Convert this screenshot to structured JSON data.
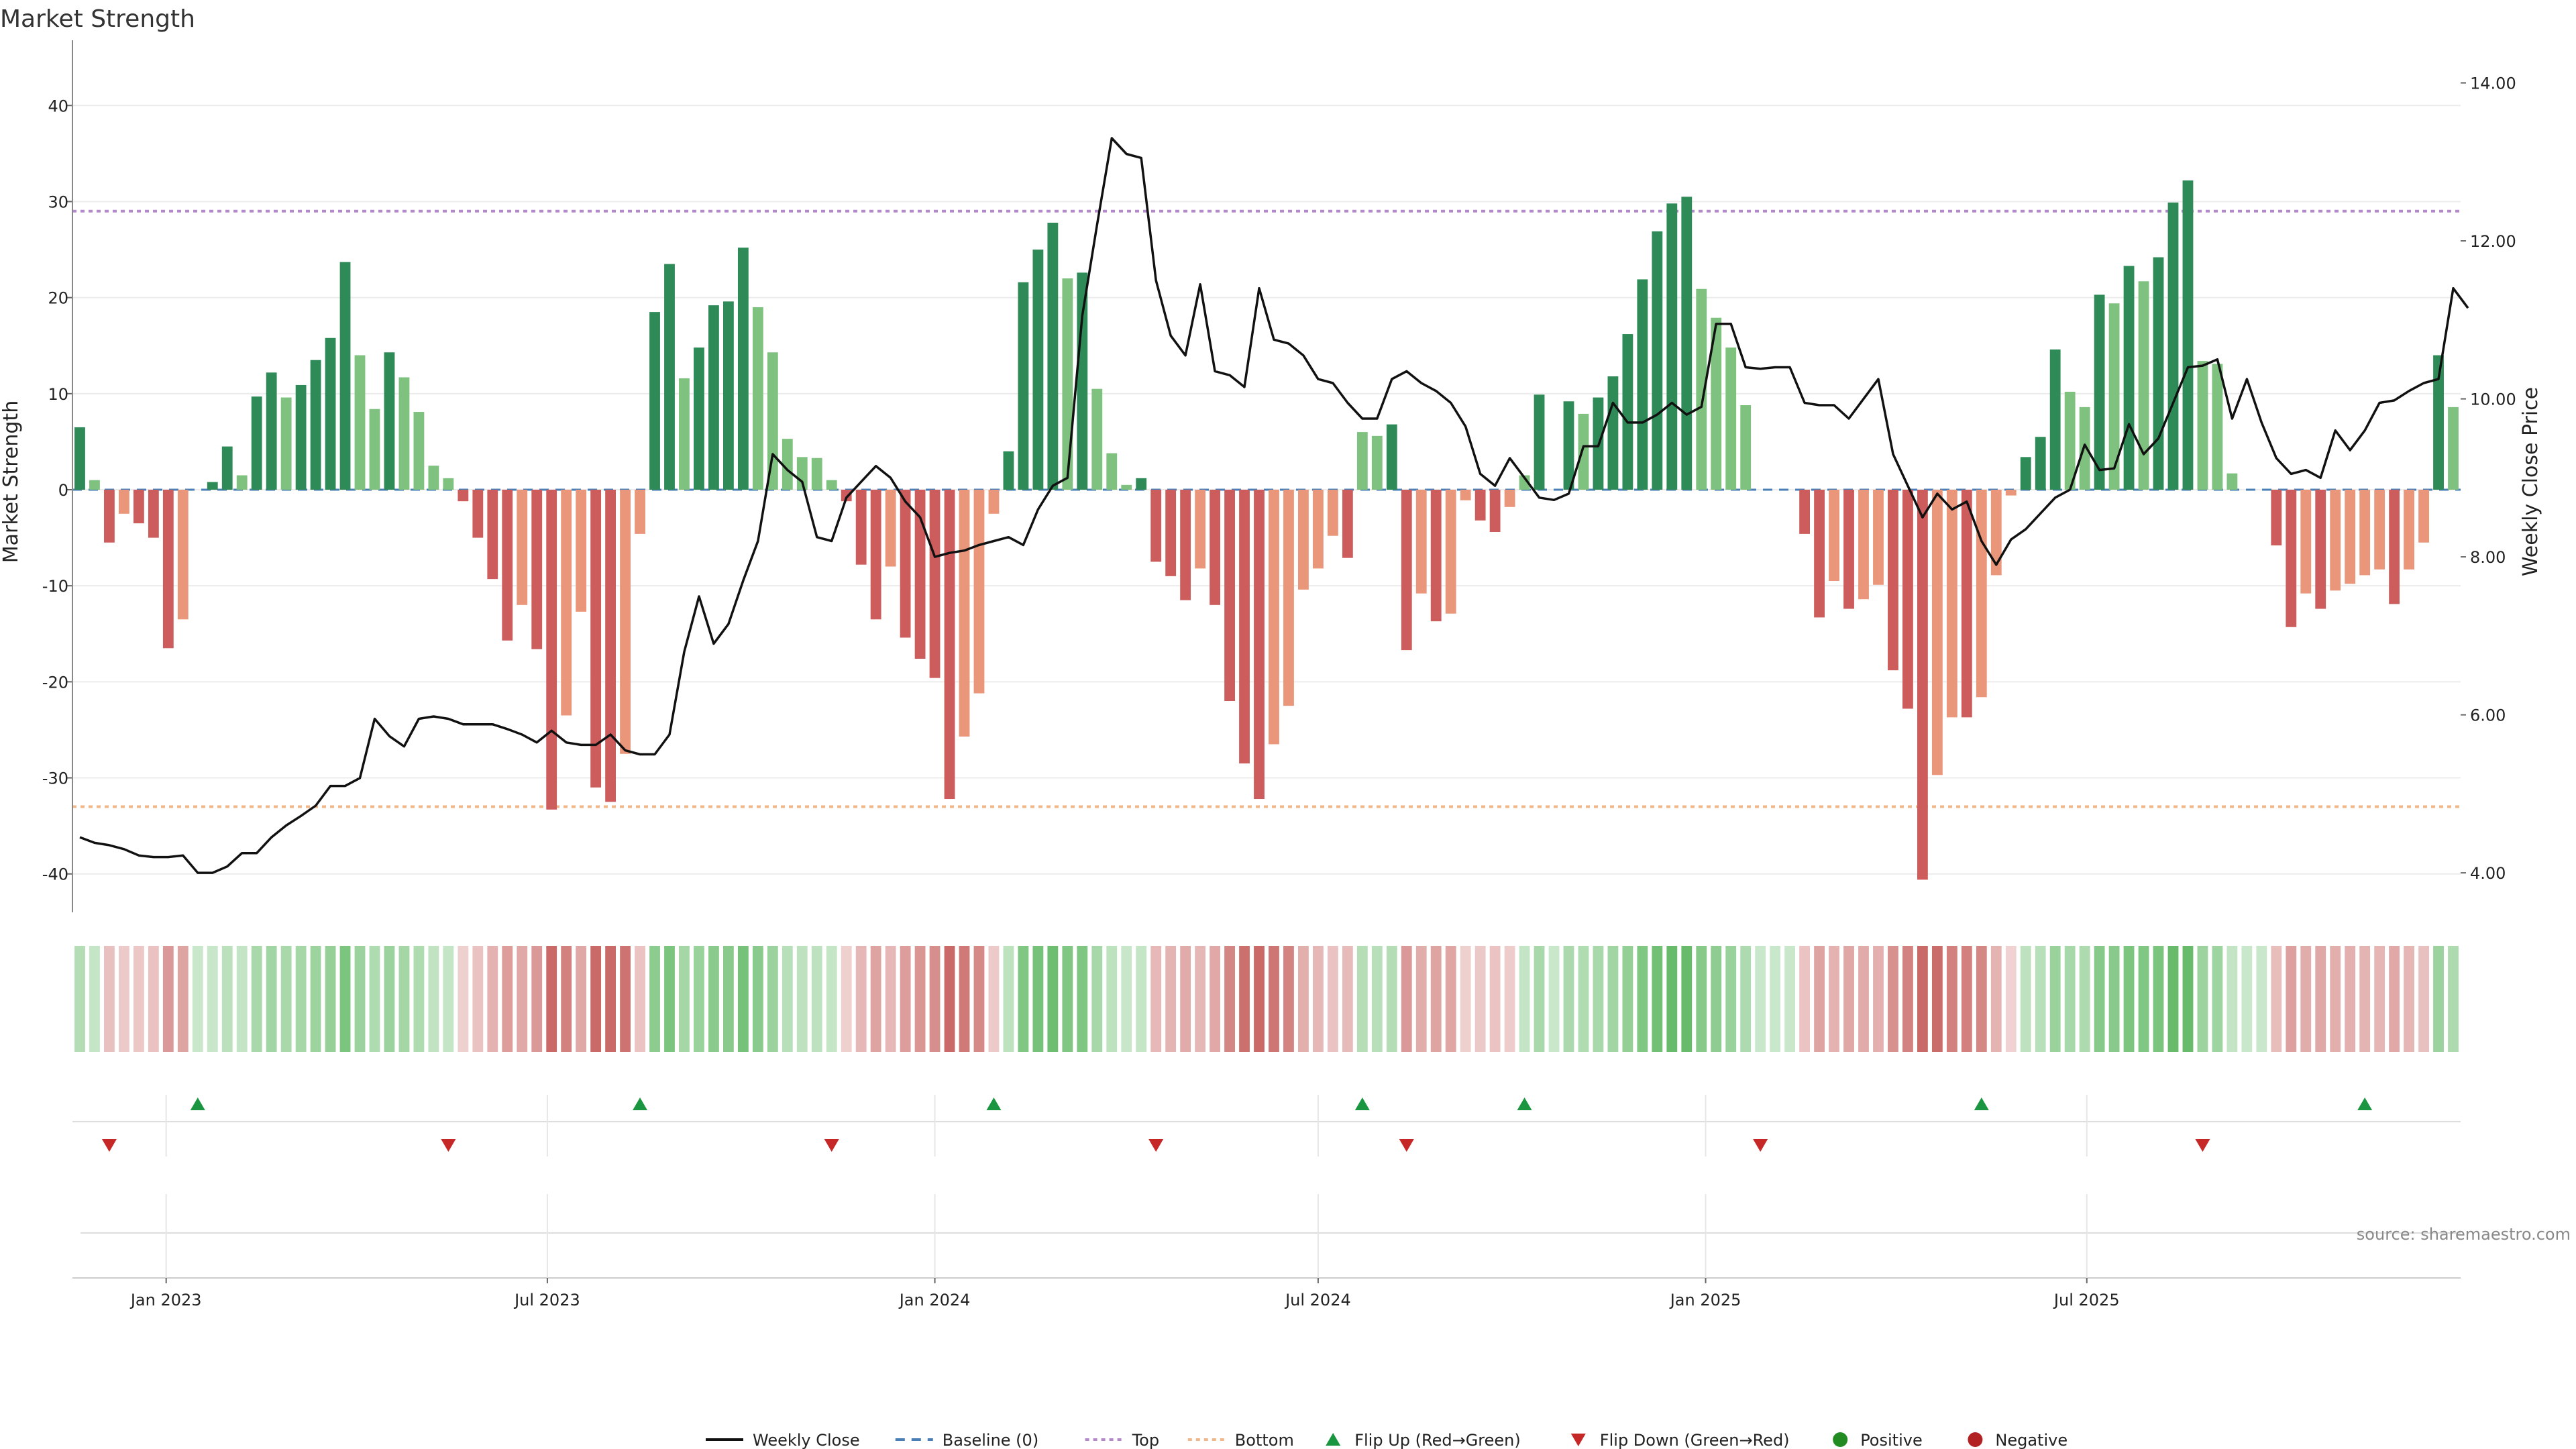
{
  "chart_data": {
    "type": "bar",
    "title": "Market Strength",
    "ylabel": "Market Strength",
    "y2label": "Weekly Close Price",
    "ylim": [
      -44,
      44
    ],
    "y2lim": [
      3.5,
      14.2
    ],
    "yticks": [
      40,
      30,
      20,
      10,
      0,
      -10,
      -20,
      -30,
      -40
    ],
    "y2ticks": [
      "14.00",
      "12.00",
      "10.00",
      "8.00",
      "6.00",
      "4.00"
    ],
    "x_start": "2022-11-21",
    "xticks": [
      {
        "date": "2023-01-01",
        "label": "Jan 2023"
      },
      {
        "date": "2023-07-01",
        "label": "Jul 2023"
      },
      {
        "date": "2024-01-01",
        "label": "Jan 2024"
      },
      {
        "date": "2024-07-01",
        "label": "Jul 2024"
      },
      {
        "date": "2025-01-01",
        "label": "Jan 2025"
      },
      {
        "date": "2025-07-01",
        "label": "Jul 2025"
      }
    ],
    "strength": [
      6.5,
      1,
      -5.5,
      -2.5,
      -3.5,
      -5,
      -16.5,
      -13.5,
      0,
      0.8,
      4.5,
      1.5,
      9.7,
      12.2,
      9.6,
      10.9,
      13.5,
      15.8,
      23.7,
      14,
      8.4,
      14.3,
      11.7,
      8.1,
      2.5,
      1.2,
      -1.2,
      -5,
      -9.3,
      -15.7,
      -12,
      -16.6,
      -33.3,
      -23.5,
      -12.7,
      -31,
      -32.5,
      -27.5,
      -4.6,
      18.5,
      23.5,
      11.6,
      14.8,
      19.2,
      19.6,
      25.2,
      19,
      14.3,
      5.3,
      3.4,
      3.3,
      1,
      -1.2,
      -7.8,
      -13.5,
      -8,
      -15.4,
      -17.6,
      -19.6,
      -32.2,
      -25.7,
      -21.2,
      -2.5,
      4,
      21.6,
      25,
      27.8,
      22,
      22.6,
      10.5,
      3.8,
      0.5,
      1.2,
      -7.5,
      -9,
      -11.5,
      -8.2,
      -12,
      -22,
      -28.5,
      -32.2,
      -26.5,
      -22.5,
      -10.4,
      -8.2,
      -4.8,
      -7.1,
      6,
      5.6,
      6.8,
      -16.7,
      -10.8,
      -13.7,
      -12.9,
      -1.1,
      -3.2,
      -4.4,
      -1.8,
      1.5,
      9.9,
      0,
      9.2,
      7.9,
      9.6,
      11.8,
      16.2,
      21.9,
      26.9,
      29.8,
      30.5,
      20.9,
      17.9,
      14.8,
      8.8,
      0,
      0,
      0,
      -4.6,
      -13.3,
      -9.5,
      -12.4,
      -11.4,
      -9.9,
      -18.8,
      -22.8,
      -40.6,
      -29.7,
      -23.7,
      -23.7,
      -21.6,
      -8.9,
      -0.6,
      3.4,
      5.5,
      14.6,
      10.2,
      8.6,
      20.3,
      19.4,
      23.3,
      21.7,
      24.2,
      29.9,
      32.2,
      13.4,
      13.1,
      1.7,
      0,
      0,
      -5.8,
      -14.3,
      -10.8,
      -12.4,
      -10.5,
      -9.8,
      -8.9,
      -8.3,
      -11.9,
      -8.3,
      -5.5,
      14,
      8.6
    ],
    "close": [
      4.45,
      4.38,
      4.35,
      4.3,
      4.22,
      4.2,
      4.2,
      4.22,
      4.0,
      4.0,
      4.08,
      4.25,
      4.25,
      4.45,
      4.6,
      4.72,
      4.85,
      5.1,
      5.1,
      5.2,
      5.95,
      5.73,
      5.6,
      5.95,
      5.98,
      5.95,
      5.88,
      5.88,
      5.88,
      5.82,
      5.75,
      5.65,
      5.8,
      5.65,
      5.62,
      5.62,
      5.75,
      5.55,
      5.5,
      5.5,
      5.75,
      6.8,
      7.5,
      6.9,
      7.15,
      7.7,
      8.2,
      9.3,
      9.1,
      8.95,
      8.25,
      8.2,
      8.75,
      8.95,
      9.15,
      9.0,
      8.7,
      8.5,
      8.0,
      8.05,
      8.08,
      8.15,
      8.2,
      8.25,
      8.15,
      8.6,
      8.9,
      9.0,
      11.05,
      12.2,
      13.3,
      13.1,
      13.05,
      11.5,
      10.8,
      10.55,
      11.45,
      10.35,
      10.3,
      10.15,
      11.4,
      10.75,
      10.7,
      10.55,
      10.25,
      10.2,
      9.95,
      9.75,
      9.75,
      10.25,
      10.35,
      10.2,
      10.1,
      9.95,
      9.65,
      9.05,
      8.9,
      9.25,
      9.0,
      8.75,
      8.72,
      8.8,
      9.4,
      9.4,
      9.95,
      9.7,
      9.7,
      9.8,
      9.95,
      9.8,
      9.9,
      10.95,
      10.95,
      10.4,
      10.38,
      10.4,
      10.4,
      9.95,
      9.92,
      9.92,
      9.75,
      10,
      10.25,
      9.3,
      8.9,
      8.5,
      8.8,
      8.6,
      8.7,
      8.2,
      7.9,
      8.22,
      8.35,
      8.55,
      8.75,
      8.85,
      9.42,
      9.1,
      9.12,
      9.68,
      9.3,
      9.5,
      9.95,
      10.4,
      10.42,
      10.5,
      9.75,
      10.25,
      9.7,
      9.25,
      9.05,
      9.1,
      9.0,
      9.6,
      9.35,
      9.6,
      9.95,
      9.98,
      10.1,
      10.2,
      10.25,
      11.4,
      11.15
    ],
    "flip_up_weeks": [
      8,
      38,
      62,
      87,
      98,
      129,
      155
    ],
    "flip_down_weeks": [
      2,
      25,
      51,
      73,
      90,
      114,
      144
    ],
    "top": 29,
    "bottom": -33,
    "source": "source: sharemaestro.com",
    "legend": {
      "weekly_close": "Weekly Close",
      "baseline": "Baseline (0)",
      "top": "Top",
      "bottom": "Bottom",
      "flip_up": "Flip Up (Red→Green)",
      "flip_down": "Flip Down (Green→Red)",
      "positive": "Positive",
      "negative": "Negative"
    }
  },
  "colors": {
    "green_dark": "#2e8b57",
    "green_light": "#7fc27f",
    "red_dark": "#cd5c5c",
    "red_light": "#e9967a",
    "line": "#111111",
    "top": "#b48acb",
    "bottom": "#f0b88a",
    "baseline": "#4a7fb5",
    "flip_up": "#1a9641",
    "flip_down": "#c62828",
    "positive": "#228b22",
    "negative": "#b22222"
  }
}
